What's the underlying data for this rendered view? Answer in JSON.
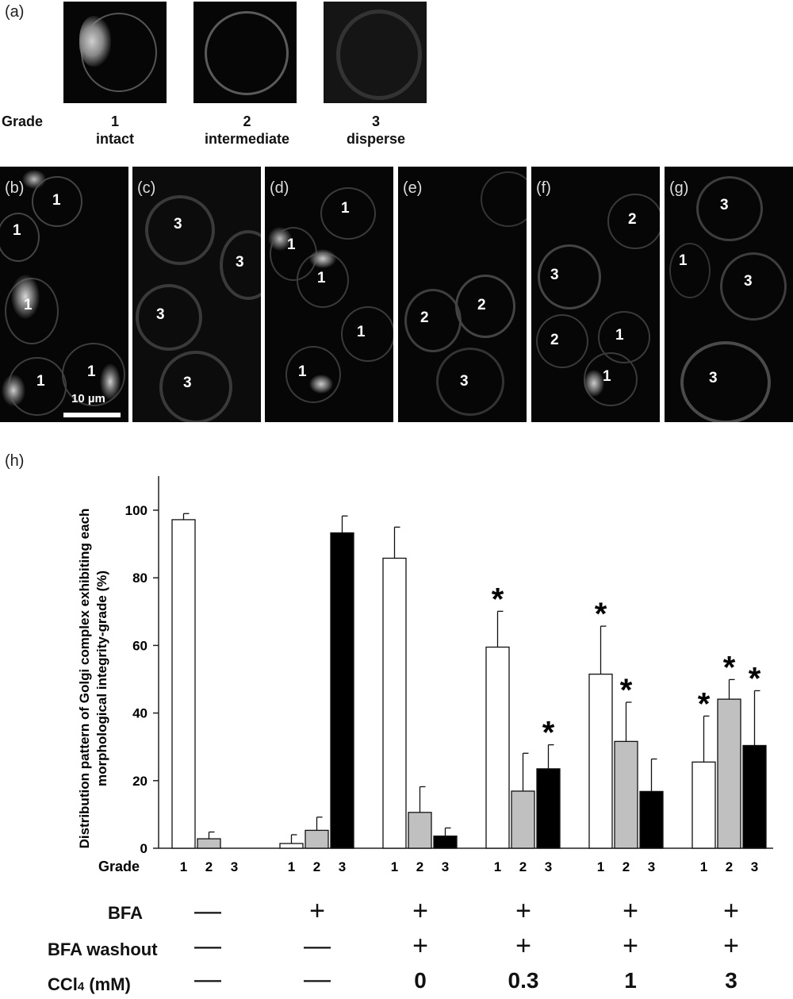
{
  "panel_a": {
    "label": "(a)",
    "grade_word": "Grade",
    "grades": [
      {
        "num": "1",
        "name": "intact"
      },
      {
        "num": "2",
        "name": "intermediate"
      },
      {
        "num": "3",
        "name": "disperse"
      }
    ]
  },
  "micrographs": [
    {
      "label": "(b)",
      "cells": [
        "1",
        "1",
        "1",
        "1",
        "1"
      ],
      "scale_bar": "10 µm"
    },
    {
      "label": "(c)",
      "cells": [
        "3",
        "3",
        "3",
        "3"
      ]
    },
    {
      "label": "(d)",
      "cells": [
        "1",
        "1",
        "1",
        "1",
        "1"
      ]
    },
    {
      "label": "(e)",
      "cells": [
        "2",
        "2",
        "3"
      ]
    },
    {
      "label": "(f)",
      "cells": [
        "2",
        "3",
        "2",
        "1",
        "1"
      ]
    },
    {
      "label": "(g)",
      "cells": [
        "3",
        "1",
        "3",
        "3"
      ]
    }
  ],
  "panel_h_label": "(h)",
  "chart_data": {
    "type": "bar",
    "ylabel": "Distribution pattern of Golgi complex exhibiting each morphological integrity-grade (%)",
    "ylim": [
      0,
      100
    ],
    "yticks": [
      "0",
      "20",
      "40",
      "60",
      "80",
      "100"
    ],
    "grade_axis_label": "Grade",
    "grade_tick_labels": [
      "1",
      "2",
      "3"
    ],
    "groups": [
      {
        "values": [
          97.2,
          2.8,
          0
        ],
        "errors": [
          1.8,
          2.0,
          0
        ],
        "sig": [
          false,
          false,
          false
        ]
      },
      {
        "values": [
          1.4,
          5.3,
          93.3
        ],
        "errors": [
          2.6,
          3.9,
          5.0
        ],
        "sig": [
          false,
          false,
          false
        ]
      },
      {
        "values": [
          85.8,
          10.6,
          3.6
        ],
        "errors": [
          9.2,
          7.6,
          2.4
        ],
        "sig": [
          false,
          false,
          false
        ]
      },
      {
        "values": [
          59.5,
          16.9,
          23.5
        ],
        "errors": [
          10.6,
          11.2,
          7.1
        ],
        "sig": [
          true,
          false,
          true
        ]
      },
      {
        "values": [
          51.5,
          31.6,
          16.8
        ],
        "errors": [
          14.2,
          11.6,
          9.6
        ],
        "sig": [
          true,
          true,
          false
        ]
      },
      {
        "values": [
          25.5,
          44.1,
          30.4
        ],
        "errors": [
          13.6,
          5.8,
          16.2
        ],
        "sig": [
          true,
          true,
          true
        ]
      }
    ],
    "series_colors": [
      "#ffffff",
      "#c0c0c0",
      "#000000"
    ],
    "sig_marker": "*"
  },
  "conditions": {
    "rows": [
      {
        "label": "BFA",
        "values": [
          "—",
          "+",
          "+",
          "+",
          "+",
          "+"
        ]
      },
      {
        "label": "BFA washout",
        "values": [
          "—",
          "—",
          "+",
          "+",
          "+",
          "+"
        ]
      },
      {
        "label_main": "CCl",
        "label_sub": "4",
        "label_tail": " (mM)",
        "values": [
          "—",
          "—",
          "0",
          "0.3",
          "1",
          "3"
        ]
      }
    ]
  }
}
